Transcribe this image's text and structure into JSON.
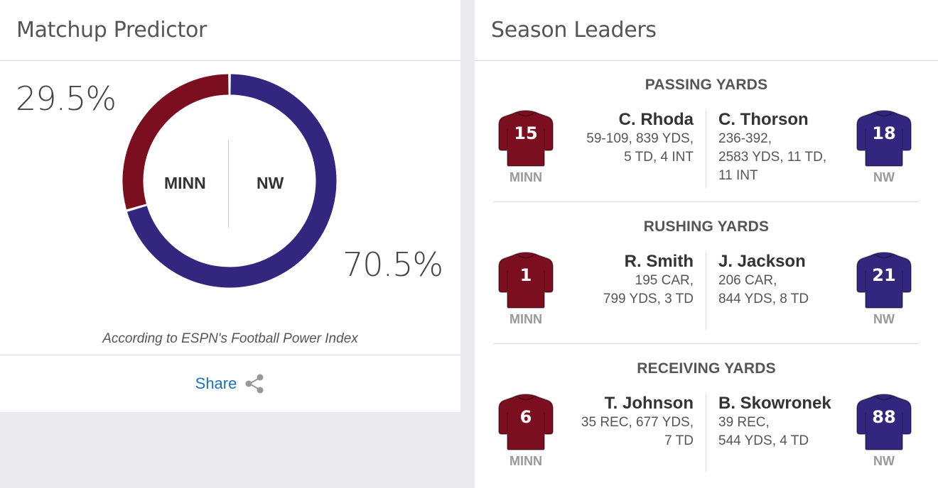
{
  "predictor": {
    "title": "Matchup Predictor",
    "minn_pct": "29.5%",
    "nw_pct": "70.5%",
    "minn_fraction": 0.295,
    "nw_fraction": 0.705,
    "team_left": "MINN",
    "team_right": "NW",
    "note": "According to ESPN's Football Power Index",
    "share_label": "Share",
    "colors": {
      "minn": "#7b0f1f",
      "nw": "#33267e"
    }
  },
  "leaders": {
    "title": "Season Leaders",
    "categories": [
      {
        "title": "PASSING YARDS",
        "left": {
          "name": "C. Rhoda",
          "stats": [
            "59-109, 839 YDS,",
            "5 TD, 4 INT"
          ],
          "number": "15",
          "team": "MINN"
        },
        "right": {
          "name": "C. Thorson",
          "stats": [
            "236-392,",
            "2583 YDS, 11 TD,",
            "11 INT"
          ],
          "number": "18",
          "team": "NW"
        }
      },
      {
        "title": "RUSHING YARDS",
        "left": {
          "name": "R. Smith",
          "stats": [
            "195 CAR,",
            "799 YDS, 3 TD"
          ],
          "number": "1",
          "team": "MINN"
        },
        "right": {
          "name": "J. Jackson",
          "stats": [
            "206 CAR,",
            "844 YDS, 8 TD"
          ],
          "number": "21",
          "team": "NW"
        }
      },
      {
        "title": "RECEIVING YARDS",
        "left": {
          "name": "T. Johnson",
          "stats": [
            "35 REC, 677 YDS,",
            "7 TD"
          ],
          "number": "6",
          "team": "MINN"
        },
        "right": {
          "name": "B. Skowronek",
          "stats": [
            "39 REC,",
            "544 YDS, 4 TD"
          ],
          "number": "88",
          "team": "NW"
        }
      }
    ]
  }
}
